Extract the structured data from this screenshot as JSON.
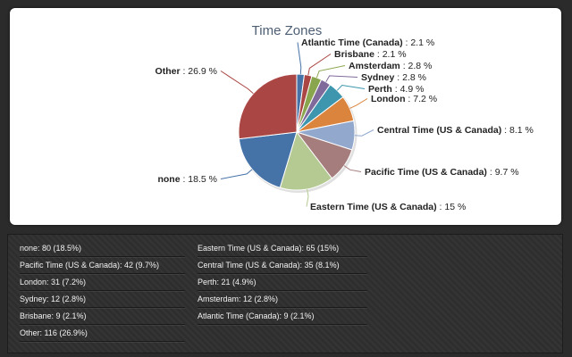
{
  "chart": {
    "title": "Time Zones"
  },
  "chart_data": {
    "type": "pie",
    "title": "Time Zones",
    "slices": [
      {
        "name": "Atlantic Time (Canada)",
        "pct_label": "2.1 %",
        "value": 2.1,
        "color": "#4572a7"
      },
      {
        "name": "Brisbane",
        "pct_label": "2.1 %",
        "value": 2.1,
        "color": "#aa4643"
      },
      {
        "name": "Amsterdam",
        "pct_label": "2.8 %",
        "value": 2.8,
        "color": "#89a54e"
      },
      {
        "name": "Sydney",
        "pct_label": "2.8 %",
        "value": 2.8,
        "color": "#80699b"
      },
      {
        "name": "Perth",
        "pct_label": "4.9 %",
        "value": 4.9,
        "color": "#3d96ae"
      },
      {
        "name": "London",
        "pct_label": "7.2 %",
        "value": 7.2,
        "color": "#db843d"
      },
      {
        "name": "Central Time (US & Canada)",
        "pct_label": "8.1 %",
        "value": 8.1,
        "color": "#92a8cd"
      },
      {
        "name": "Pacific Time (US & Canada)",
        "pct_label": "9.7 %",
        "value": 9.7,
        "color": "#a47d7c"
      },
      {
        "name": "Eastern Time (US & Canada)",
        "pct_label": "15 %",
        "value": 15,
        "color": "#b5ca92"
      },
      {
        "name": "none",
        "pct_label": "18.5 %",
        "value": 18.5,
        "color": "#4572a7"
      },
      {
        "name": "Other",
        "pct_label": "26.9 %",
        "value": 26.9,
        "color": "#aa4643"
      }
    ]
  },
  "legend": {
    "left": [
      "none: 80 (18.5%)",
      "Pacific Time (US & Canada): 42 (9.7%)",
      "London: 31 (7.2%)",
      "Sydney: 12 (2.8%)",
      "Brisbane: 9 (2.1%)",
      "Other: 116 (26.9%)"
    ],
    "right": [
      "Eastern Time (US & Canada): 65 (15%)",
      "Central Time (US & Canada): 35 (8.1%)",
      "Perth: 21 (4.9%)",
      "Amsterdam: 12 (2.8%)",
      "Atlantic Time (Canada): 9 (2.1%)"
    ]
  }
}
